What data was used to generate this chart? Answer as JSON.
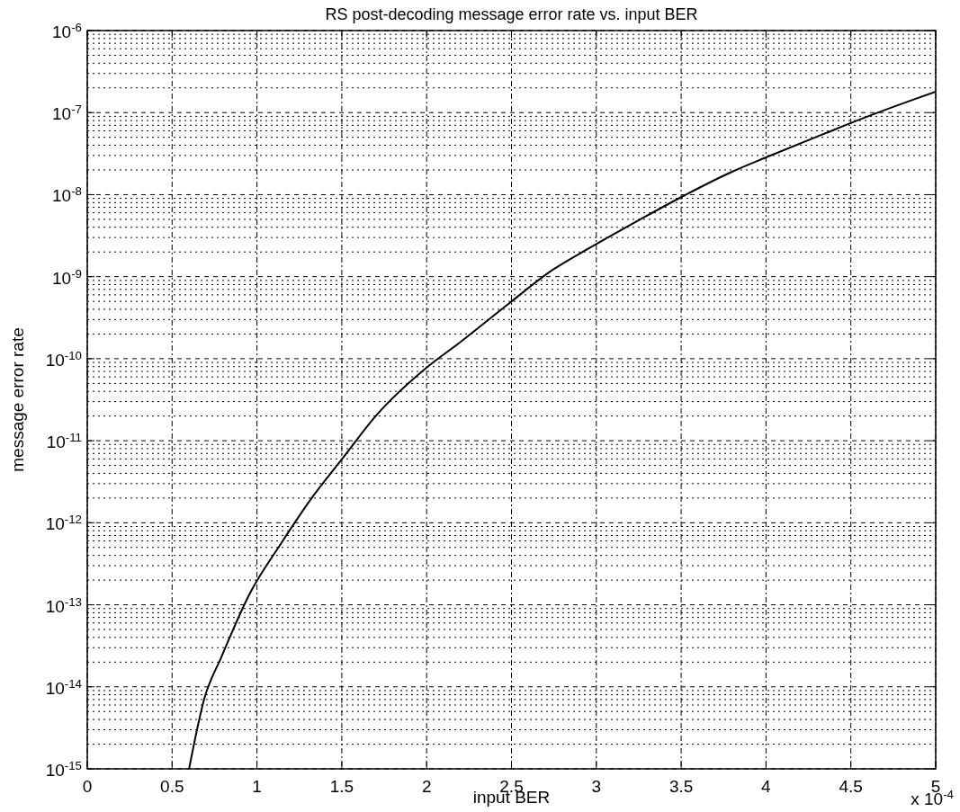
{
  "chart_data": {
    "type": "line",
    "title": "RS post-decoding message error rate vs. input BER",
    "xlabel": "input BER",
    "ylabel": "message error rate",
    "annotations": [
      "x 10$^{-4}$"
    ],
    "x": [
      0.6,
      0.69,
      0.79,
      0.96,
      1.14,
      1.33,
      1.51,
      1.7,
      2.0,
      2.2,
      2.49,
      2.74,
      2.97,
      3.26,
      3.52,
      3.8,
      4.01,
      4.35,
      4.57,
      5.0
    ],
    "series": [
      {
        "color": "#000000",
        "values": [
          1e-15,
          7.2e-15,
          2.3e-14,
          1.4e-13,
          5.5e-13,
          2.1e-12,
          6.3e-12,
          2e-11,
          7.8e-11,
          1.6e-10,
          4.8e-10,
          1.2e-09,
          2.3e-09,
          5e-09,
          9.8e-09,
          1.9e-08,
          2.9e-08,
          5.6e-08,
          8.5e-08,
          1.8e-07
        ]
      }
    ],
    "xlim": [
      0,
      5
    ],
    "xticks": [
      0,
      0.5,
      1,
      1.5,
      2,
      2.5,
      3,
      3.5,
      4,
      4.5,
      5
    ],
    "ylim": [
      1e-15,
      1e-06
    ],
    "yticks": [
      {
        "value": 1e-15,
        "label": "10$^{-15}$"
      },
      {
        "value": 1e-14,
        "label": "10$^{-14}$"
      },
      {
        "value": 1e-13,
        "label": "10$^{-13}$"
      },
      {
        "value": 1e-12,
        "label": "10$^{-12}$"
      },
      {
        "value": 1e-11,
        "label": "10$^{-11}$"
      },
      {
        "value": 1e-10,
        "label": "10$^{-10}$"
      },
      {
        "value": 1e-09,
        "label": "10$^{-9}$"
      },
      {
        "value": 1e-08,
        "label": "10$^{-8}$"
      },
      {
        "value": 1e-07,
        "label": "10$^{-7}$"
      },
      {
        "value": 1e-06,
        "label": "10$^{-6}$"
      }
    ],
    "log": "y",
    "grid": true,
    "line_style": "solid",
    "marker": "none"
  }
}
